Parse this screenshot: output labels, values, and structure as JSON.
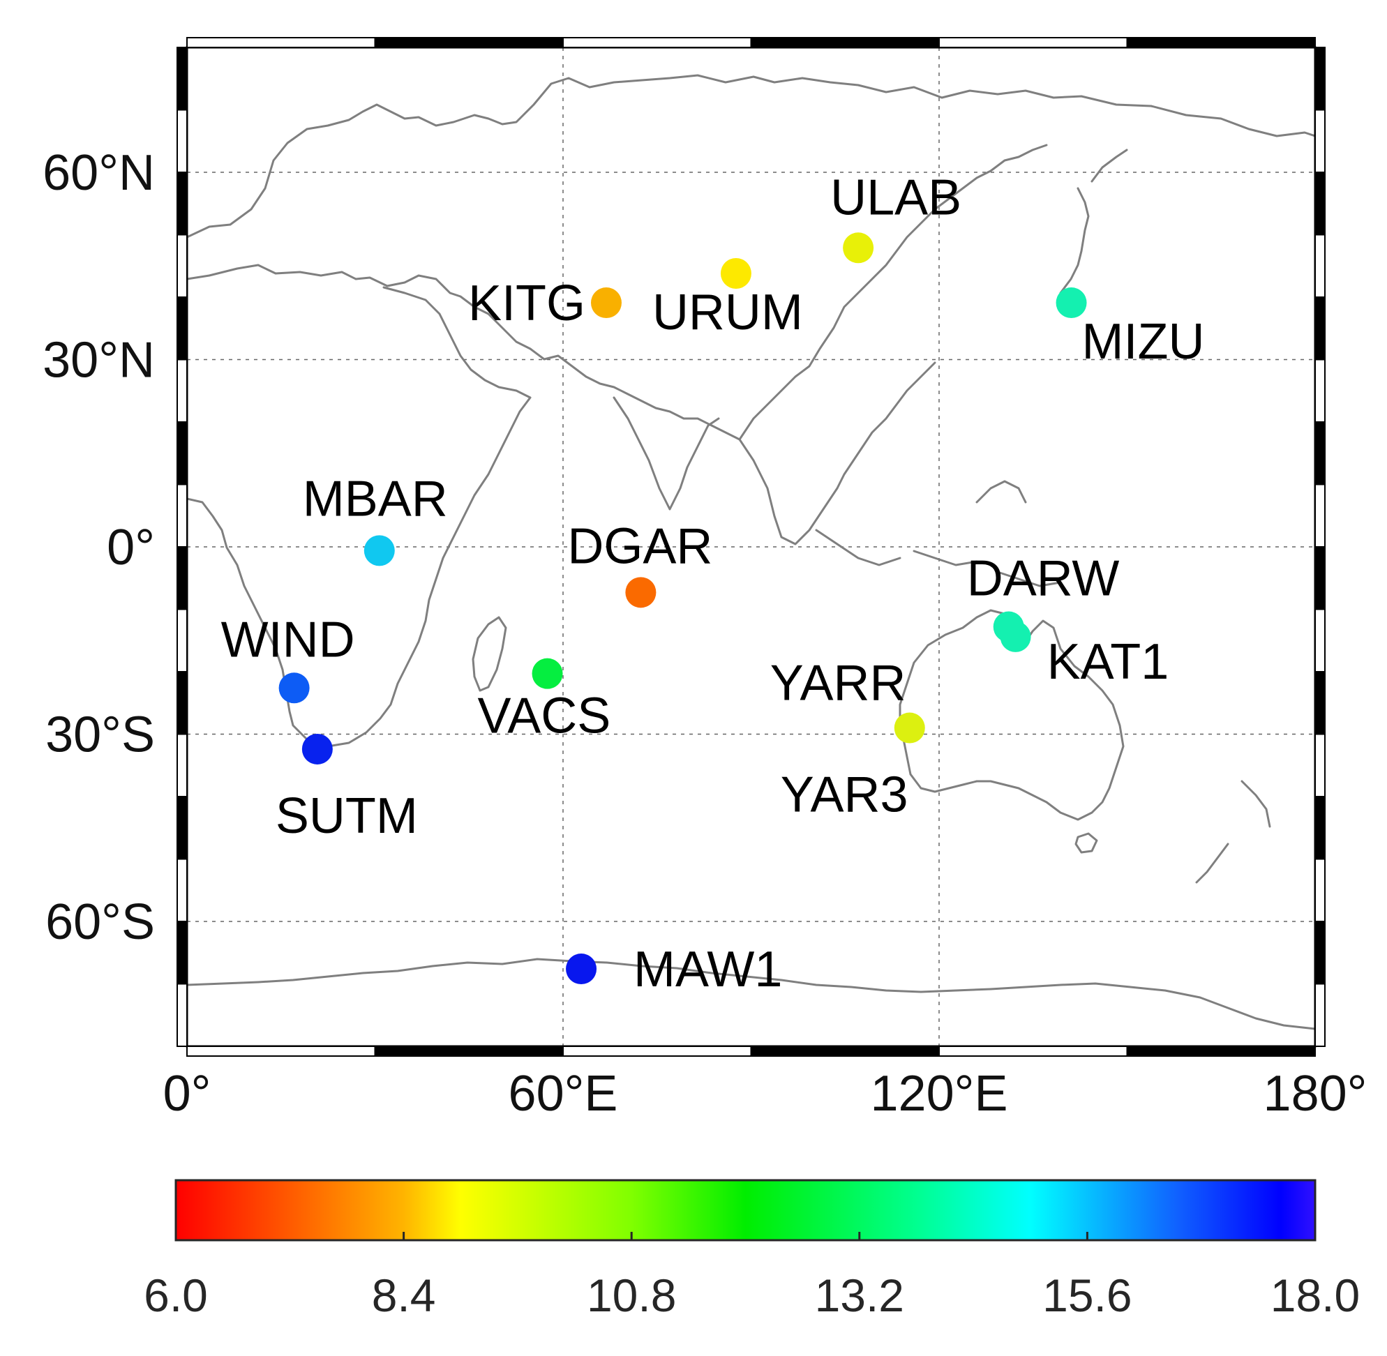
{
  "chart_data": {
    "type": "scatter",
    "map": {
      "lon_range": [
        0,
        180
      ],
      "lat_range": [
        -80,
        80
      ],
      "grid": true,
      "xticks": [
        {
          "value": 0,
          "label": "0°"
        },
        {
          "value": 60,
          "label": "60°E"
        },
        {
          "value": 120,
          "label": "120°E"
        },
        {
          "value": 180,
          "label": "180°"
        }
      ],
      "yticks": [
        {
          "value": 60,
          "label": "60°N"
        },
        {
          "value": 30,
          "label": "30°N"
        },
        {
          "value": 0,
          "label": "0°"
        },
        {
          "value": -30,
          "label": "30°S"
        },
        {
          "value": -60,
          "label": "60°S"
        }
      ]
    },
    "colorbar": {
      "range": [
        6.0,
        18.0
      ],
      "colormap": "rainbow (red → yellow → green → cyan → blue)",
      "ticks": [
        "6.0",
        "8.4",
        "10.8",
        "13.2",
        "15.6",
        "18.0"
      ]
    },
    "stations": [
      {
        "name": "ULAB",
        "lon": 107.1,
        "lat": 47.9,
        "value": 9.0,
        "color": "#e8f008"
      },
      {
        "name": "URUM",
        "lon": 87.6,
        "lat": 43.8,
        "value": 8.6,
        "color": "#fde900"
      },
      {
        "name": "KITG",
        "lon": 66.9,
        "lat": 39.1,
        "value": 7.8,
        "color": "#f9b000"
      },
      {
        "name": "MIZU",
        "lon": 141.1,
        "lat": 39.1,
        "value": 13.4,
        "color": "#14f0b0"
      },
      {
        "name": "MBAR",
        "lon": 30.7,
        "lat": -0.6,
        "value": 14.8,
        "color": "#10c8f0"
      },
      {
        "name": "DGAR",
        "lon": 72.4,
        "lat": -7.3,
        "value": 7.1,
        "color": "#fa6a00"
      },
      {
        "name": "DARW",
        "lon": 131.1,
        "lat": -12.8,
        "value": 13.2,
        "color": "#14f0b0"
      },
      {
        "name": "KAT1",
        "lon": 132.2,
        "lat": -14.4,
        "value": 13.2,
        "color": "#14f0b0"
      },
      {
        "name": "WIND",
        "lon": 17.1,
        "lat": -22.6,
        "value": 16.4,
        "color": "#0d5cf5"
      },
      {
        "name": "VACS",
        "lon": 57.5,
        "lat": -20.3,
        "value": 11.4,
        "color": "#05ee40"
      },
      {
        "name": "YARR",
        "lon": 115.3,
        "lat": -29.0,
        "value": 9.2,
        "color": "#dcf010"
      },
      {
        "name": "YAR3",
        "lon": 115.3,
        "lat": -29.0,
        "value": 9.2,
        "color": "#dcf010"
      },
      {
        "name": "SUTM",
        "lon": 20.8,
        "lat": -32.4,
        "value": 17.3,
        "color": "#0822ee"
      },
      {
        "name": "MAW1",
        "lon": 62.9,
        "lat": -67.6,
        "value": 17.4,
        "color": "#0817ee"
      }
    ]
  }
}
